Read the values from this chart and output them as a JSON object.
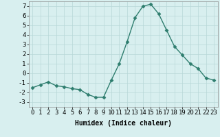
{
  "x": [
    0,
    1,
    2,
    3,
    4,
    5,
    6,
    7,
    8,
    9,
    10,
    11,
    12,
    13,
    14,
    15,
    16,
    17,
    18,
    19,
    20,
    21,
    22,
    23
  ],
  "y": [
    -1.5,
    -1.2,
    -0.9,
    -1.3,
    -1.4,
    -1.6,
    -1.7,
    -2.2,
    -2.5,
    -2.5,
    -0.7,
    1.0,
    3.3,
    5.8,
    7.0,
    7.2,
    6.2,
    4.5,
    2.8,
    1.9,
    1.0,
    0.5,
    -0.5,
    -0.7
  ],
  "line_color": "#2e7d6e",
  "marker": "D",
  "markersize": 2.5,
  "linewidth": 1.0,
  "xlabel": "Humidex (Indice chaleur)",
  "xlim": [
    -0.5,
    23.5
  ],
  "ylim": [
    -3.5,
    7.5
  ],
  "yticks": [
    -3,
    -2,
    -1,
    0,
    1,
    2,
    3,
    4,
    5,
    6,
    7
  ],
  "xticks": [
    0,
    1,
    2,
    3,
    4,
    5,
    6,
    7,
    8,
    9,
    10,
    11,
    12,
    13,
    14,
    15,
    16,
    17,
    18,
    19,
    20,
    21,
    22,
    23
  ],
  "background_color": "#d8efef",
  "grid_color": "#b8d8d8",
  "xlabel_fontsize": 7,
  "tick_fontsize": 6.5
}
